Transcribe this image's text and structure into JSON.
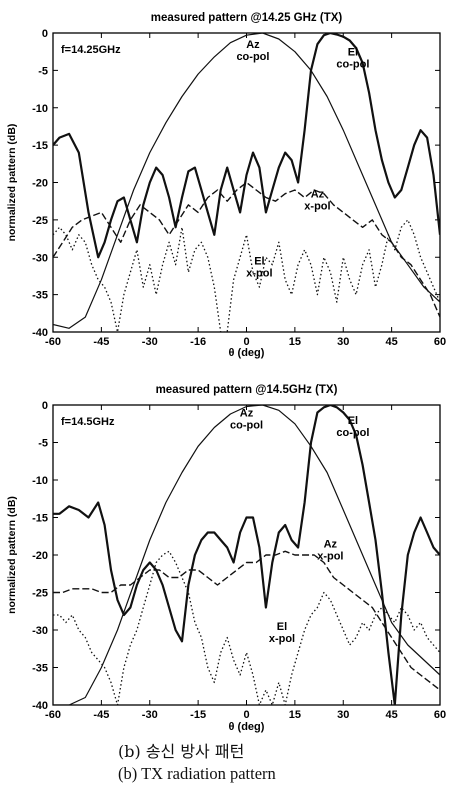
{
  "figure": {
    "caption_kr": "(b) 송신 방사 패턴",
    "caption_en": "(b) TX radiation pattern"
  },
  "chart_data": [
    {
      "type": "line",
      "title": "measured pattern @14.25 GHz (TX)",
      "freq_label": "f=14.25GHz",
      "xlabel": "θ (deg)",
      "ylabel": "normalized pattern (dB)",
      "xlim": [
        -60,
        60
      ],
      "ylim": [
        -40,
        0
      ],
      "xticks": [
        "-60",
        "-45",
        "-30",
        "-16",
        "0",
        "15",
        "30",
        "45",
        "60"
      ],
      "yticks": [
        "0",
        "-5",
        "-10",
        "-15",
        "-20",
        "-25",
        "-30",
        "-35",
        "-40"
      ],
      "grid": false,
      "annotations": [
        {
          "lines": [
            "Az",
            "co-pol"
          ],
          "x": 2,
          "y": -2
        },
        {
          "lines": [
            "El",
            "co-pol"
          ],
          "x": 33,
          "y": -3
        },
        {
          "lines": [
            "Az",
            "x-pol"
          ],
          "x": 22,
          "y": -22
        },
        {
          "lines": [
            "El",
            "x-pol"
          ],
          "x": 4,
          "y": -31
        }
      ],
      "series": [
        {
          "name": "Az co-pol",
          "style": "solid",
          "width": 1.2,
          "x": [
            -60,
            -55,
            -50,
            -45,
            -40,
            -35,
            -30,
            -25,
            -20,
            -15,
            -10,
            -5,
            0,
            5,
            10,
            15,
            20,
            25,
            30,
            35,
            40,
            45,
            50,
            55,
            60
          ],
          "y": [
            -39,
            -39.5,
            -38,
            -33,
            -27,
            -21,
            -16,
            -12,
            -8.5,
            -5.5,
            -3.2,
            -1.3,
            -0.3,
            0,
            -0.8,
            -2.5,
            -5,
            -8.5,
            -13,
            -18,
            -23,
            -28,
            -31,
            -34,
            -36
          ]
        },
        {
          "name": "El co-pol",
          "style": "solid",
          "width": 2.2,
          "x": [
            -60,
            -58,
            -55,
            -52,
            -49,
            -46,
            -44,
            -42,
            -40,
            -38,
            -36,
            -34,
            -32,
            -30,
            -28,
            -26,
            -24,
            -22,
            -20,
            -18,
            -16,
            -14,
            -12,
            -10,
            -8,
            -6,
            -4,
            -2,
            0,
            2,
            4,
            6,
            8,
            10,
            12,
            14,
            16,
            18,
            20,
            22,
            24,
            26,
            28,
            30,
            32,
            34,
            36,
            38,
            40,
            42,
            44,
            46,
            48,
            50,
            52,
            54,
            56,
            58,
            60
          ],
          "y": [
            -15,
            -14,
            -13.5,
            -16,
            -24,
            -30,
            -28,
            -25,
            -22.5,
            -22,
            -25,
            -28,
            -23,
            -20,
            -18,
            -19,
            -22,
            -26,
            -22,
            -18.5,
            -18,
            -21,
            -24,
            -27,
            -21,
            -18,
            -21,
            -24,
            -19,
            -16,
            -18,
            -24,
            -21,
            -18,
            -16,
            -17,
            -20,
            -13,
            -5,
            -1.5,
            -0.3,
            0,
            -0.2,
            -0.5,
            -1,
            -2,
            -4,
            -8,
            -13,
            -17,
            -20,
            -22,
            -21,
            -18,
            -15,
            -13,
            -14,
            -19,
            -27
          ]
        },
        {
          "name": "Az x-pol",
          "style": "dashed",
          "width": 1.4,
          "x": [
            -60,
            -57,
            -54,
            -51,
            -48,
            -45,
            -42,
            -39,
            -36,
            -33,
            -30,
            -27,
            -24,
            -21,
            -18,
            -15,
            -12,
            -9,
            -6,
            -3,
            0,
            3,
            6,
            9,
            12,
            15,
            18,
            21,
            24,
            27,
            30,
            33,
            36,
            39,
            42,
            45,
            48,
            51,
            54,
            57,
            60
          ],
          "y": [
            -30,
            -28,
            -26,
            -25,
            -24.5,
            -24,
            -26,
            -28,
            -25,
            -23,
            -24,
            -25,
            -27,
            -25,
            -23,
            -24,
            -22,
            -21,
            -22.5,
            -21,
            -20,
            -21,
            -22,
            -22.5,
            -21.5,
            -21,
            -22,
            -21,
            -21.5,
            -23,
            -24,
            -25,
            -26,
            -25,
            -27,
            -28,
            -30,
            -31,
            -33,
            -35,
            -38
          ]
        },
        {
          "name": "El x-pol",
          "style": "dotted",
          "width": 1.3,
          "x": [
            -60,
            -58,
            -56,
            -54,
            -52,
            -50,
            -48,
            -46,
            -44,
            -42,
            -40,
            -38,
            -36,
            -34,
            -32,
            -30,
            -28,
            -26,
            -24,
            -22,
            -20,
            -18,
            -16,
            -14,
            -12,
            -10,
            -8,
            -6,
            -4,
            -2,
            0,
            2,
            4,
            6,
            8,
            10,
            12,
            14,
            16,
            18,
            20,
            22,
            24,
            26,
            28,
            30,
            32,
            34,
            36,
            38,
            40,
            42,
            44,
            46,
            48,
            50,
            52,
            54,
            56,
            58,
            60
          ],
          "y": [
            -27,
            -26,
            -27,
            -29,
            -27,
            -28,
            -31,
            -33,
            -34,
            -36,
            -40,
            -35,
            -32,
            -29,
            -34,
            -31,
            -35,
            -31,
            -28,
            -31,
            -26,
            -32,
            -29,
            -28,
            -30,
            -34,
            -40,
            -40,
            -33,
            -30,
            -27,
            -32,
            -34,
            -30,
            -31,
            -28,
            -33,
            -35,
            -31,
            -29,
            -31,
            -35,
            -30,
            -32,
            -36,
            -30,
            -33,
            -35,
            -31,
            -29,
            -34,
            -31,
            -27,
            -29,
            -26,
            -25,
            -27,
            -30,
            -32,
            -34,
            -36
          ]
        }
      ]
    },
    {
      "type": "line",
      "title": "measured pattern @14.5GHz (TX)",
      "freq_label": "f=14.5GHz",
      "xlabel": "θ (deg)",
      "ylabel": "normalized pattern (dB)",
      "xlim": [
        -60,
        60
      ],
      "ylim": [
        -40,
        0
      ],
      "xticks": [
        "-60",
        "-45",
        "-30",
        "-15",
        "0",
        "15",
        "30",
        "45",
        "60"
      ],
      "yticks": [
        "0",
        "-5",
        "-10",
        "-15",
        "-20",
        "-25",
        "-30",
        "-35",
        "-40"
      ],
      "grid": false,
      "annotations": [
        {
          "lines": [
            "Az",
            "co-pol"
          ],
          "x": 0,
          "y": -1.5
        },
        {
          "lines": [
            "El",
            "co-pol"
          ],
          "x": 33,
          "y": -2.5
        },
        {
          "lines": [
            "Az",
            "x-pol"
          ],
          "x": 26,
          "y": -19
        },
        {
          "lines": [
            "El",
            "x-pol"
          ],
          "x": 11,
          "y": -30
        }
      ],
      "series": [
        {
          "name": "Az co-pol",
          "style": "solid",
          "width": 1.2,
          "x": [
            -60,
            -55,
            -50,
            -45,
            -40,
            -35,
            -30,
            -25,
            -20,
            -15,
            -10,
            -5,
            0,
            5,
            10,
            15,
            20,
            25,
            30,
            35,
            40,
            45,
            50,
            55,
            60
          ],
          "y": [
            -40,
            -40,
            -39,
            -35,
            -30,
            -24,
            -18,
            -13,
            -9,
            -5.5,
            -3,
            -1.2,
            -0.2,
            0,
            -0.7,
            -2.5,
            -5.5,
            -9,
            -14,
            -19,
            -24,
            -29,
            -32,
            -34,
            -36
          ]
        },
        {
          "name": "El co-pol",
          "style": "solid",
          "width": 2.2,
          "x": [
            -60,
            -58,
            -55,
            -52,
            -49,
            -46,
            -44,
            -42,
            -40,
            -38,
            -36,
            -34,
            -32,
            -30,
            -28,
            -26,
            -24,
            -22,
            -20,
            -18,
            -16,
            -14,
            -12,
            -10,
            -8,
            -6,
            -4,
            -2,
            0,
            2,
            4,
            6,
            8,
            10,
            12,
            14,
            16,
            18,
            20,
            22,
            24,
            26,
            28,
            30,
            32,
            34,
            36,
            38,
            40,
            42,
            44,
            46,
            48,
            50,
            52,
            54,
            56,
            58,
            60
          ],
          "y": [
            -14.5,
            -14.5,
            -13.5,
            -14,
            -15,
            -13,
            -16,
            -22,
            -26,
            -28,
            -27,
            -24,
            -22,
            -21,
            -22,
            -24,
            -27,
            -30,
            -31.5,
            -24,
            -20,
            -18,
            -17,
            -17,
            -18,
            -19,
            -21,
            -17,
            -15,
            -15,
            -19,
            -27,
            -21,
            -17,
            -16,
            -18,
            -19,
            -13,
            -5,
            -1,
            -0.3,
            0,
            -0.3,
            -1,
            -2,
            -4,
            -8,
            -13,
            -18,
            -25,
            -33,
            -40,
            -28,
            -20,
            -17,
            -15,
            -17,
            -19,
            -20
          ]
        },
        {
          "name": "Az x-pol",
          "style": "dashed",
          "width": 1.4,
          "x": [
            -60,
            -57,
            -54,
            -51,
            -48,
            -45,
            -42,
            -39,
            -36,
            -33,
            -30,
            -27,
            -24,
            -21,
            -18,
            -15,
            -12,
            -9,
            -6,
            -3,
            0,
            3,
            6,
            9,
            12,
            15,
            18,
            21,
            24,
            27,
            30,
            33,
            36,
            39,
            42,
            45,
            48,
            51,
            54,
            57,
            60
          ],
          "y": [
            -25,
            -25,
            -24.5,
            -24.5,
            -24.5,
            -25,
            -25,
            -24,
            -24,
            -23,
            -22,
            -22,
            -23,
            -23,
            -22,
            -22,
            -23,
            -24,
            -23,
            -22,
            -21,
            -21,
            -20,
            -20,
            -19.5,
            -20,
            -20,
            -20,
            -21,
            -23,
            -24,
            -25,
            -26,
            -27,
            -29,
            -31,
            -33,
            -35,
            -36,
            -37,
            -38
          ]
        },
        {
          "name": "El x-pol",
          "style": "dotted",
          "width": 1.3,
          "x": [
            -60,
            -58,
            -56,
            -54,
            -52,
            -50,
            -48,
            -46,
            -44,
            -42,
            -40,
            -38,
            -36,
            -34,
            -32,
            -30,
            -28,
            -26,
            -24,
            -22,
            -20,
            -18,
            -16,
            -14,
            -12,
            -10,
            -8,
            -6,
            -4,
            -2,
            0,
            2,
            4,
            6,
            8,
            10,
            12,
            14,
            16,
            18,
            20,
            22,
            24,
            26,
            28,
            30,
            32,
            34,
            36,
            38,
            40,
            42,
            44,
            46,
            48,
            50,
            52,
            54,
            56,
            58,
            60
          ],
          "y": [
            -28,
            -28,
            -29,
            -28,
            -30,
            -31,
            -33,
            -34,
            -35,
            -37,
            -40,
            -35,
            -32,
            -30,
            -27,
            -24,
            -21,
            -20,
            -19.5,
            -21,
            -23,
            -25,
            -29,
            -31,
            -35,
            -37,
            -33,
            -31,
            -34,
            -36,
            -33,
            -36,
            -40,
            -38,
            -40,
            -37,
            -40,
            -36,
            -33,
            -30,
            -28,
            -27,
            -25,
            -26,
            -28,
            -30,
            -32,
            -31,
            -29,
            -30,
            -28,
            -27,
            -28,
            -29,
            -27,
            -28,
            -30,
            -29,
            -31,
            -32,
            -33
          ]
        }
      ]
    }
  ]
}
